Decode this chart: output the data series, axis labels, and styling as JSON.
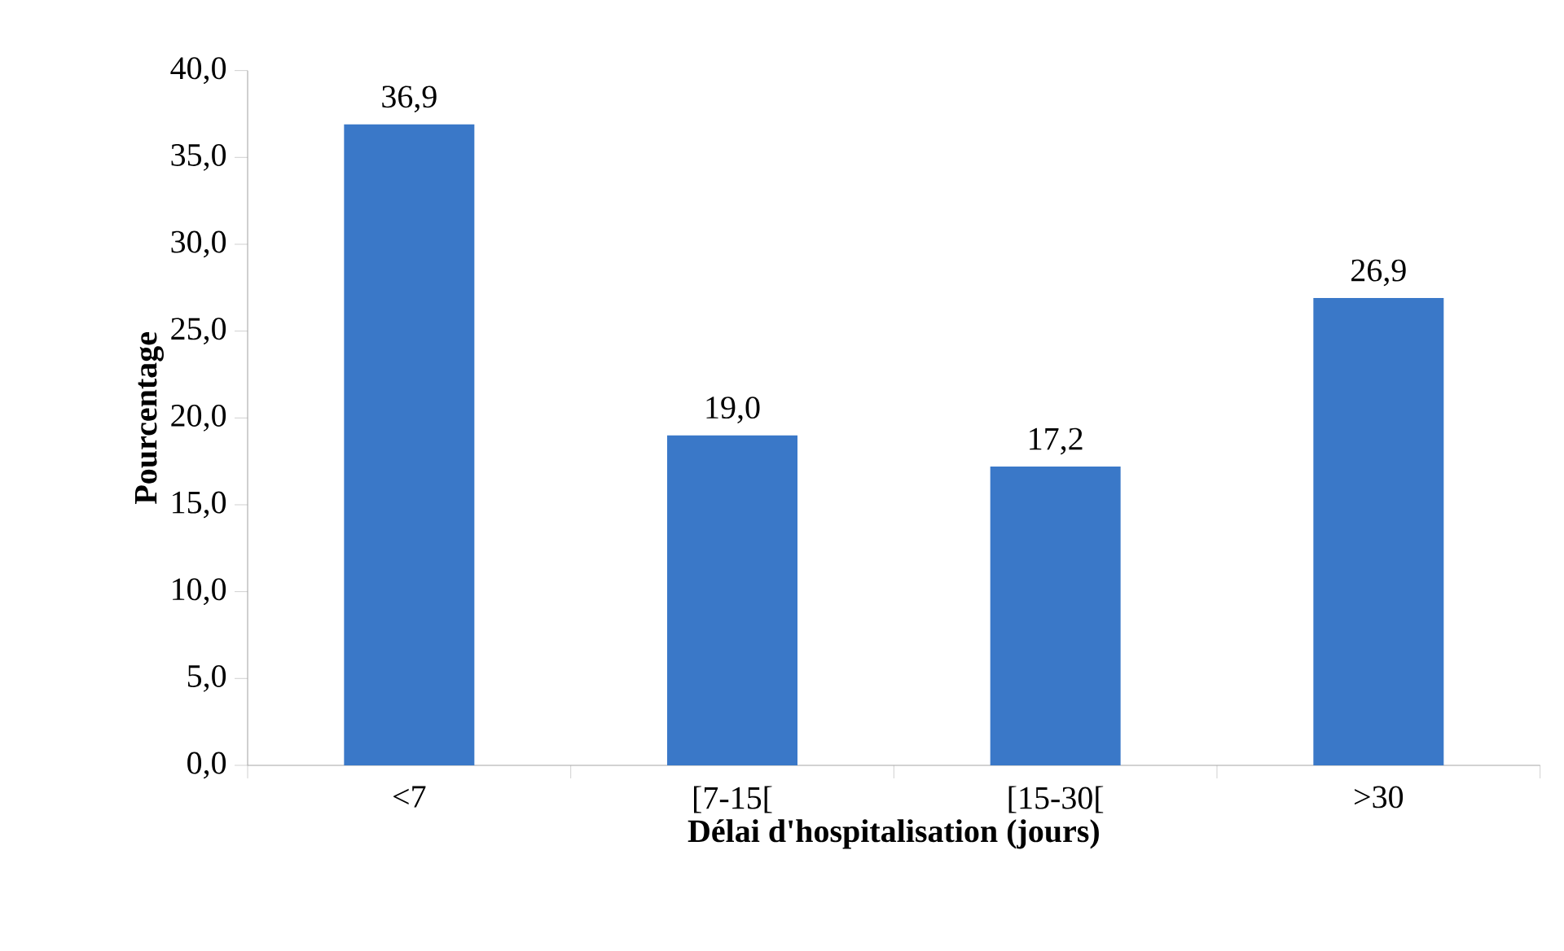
{
  "chart_data": {
    "type": "bar",
    "xlabel": "Délai d'hospitalisation (jours)",
    "ylabel": "Pourcentage",
    "categories": [
      "<7",
      "[7-15[",
      "[15-30[",
      ">30"
    ],
    "values": [
      36.9,
      19.0,
      17.2,
      26.9
    ],
    "value_labels": [
      "36,9",
      "19,0",
      "17,2",
      "26,9"
    ],
    "color": "#3a78c8",
    "ylim": [
      0,
      40
    ],
    "yticks": [
      {
        "value": 0,
        "label": "0,0"
      },
      {
        "value": 5,
        "label": "5,0"
      },
      {
        "value": 10,
        "label": "10,0"
      },
      {
        "value": 15,
        "label": "15,0"
      },
      {
        "value": 20,
        "label": "20,0"
      },
      {
        "value": 25,
        "label": "25,0"
      },
      {
        "value": 30,
        "label": "30,0"
      },
      {
        "value": 35,
        "label": "35,0"
      },
      {
        "value": 40,
        "label": "40,0"
      }
    ],
    "grid": false
  }
}
